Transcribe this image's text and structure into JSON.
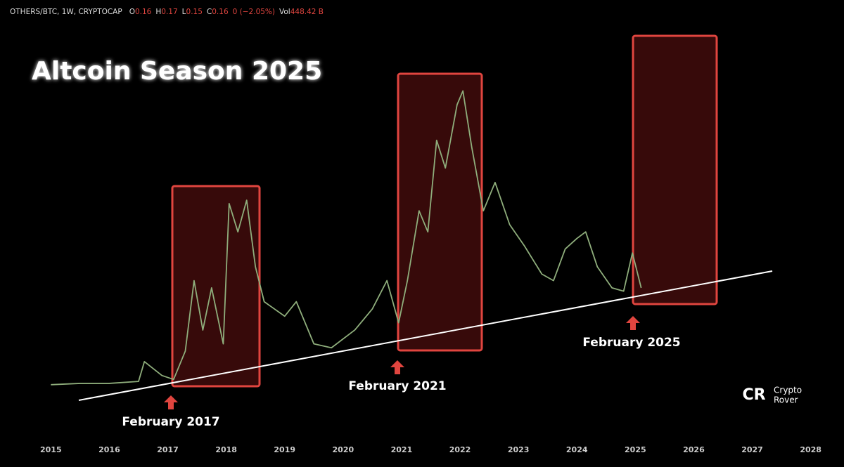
{
  "header": {
    "symbol": "OTHERS/BTC, 1W, CRYPTOCAP",
    "fields": [
      {
        "key": "O",
        "value": "0.16"
      },
      {
        "key": "H",
        "value": "0.17"
      },
      {
        "key": "L",
        "value": "0.15"
      },
      {
        "key": "C",
        "value": "0.16"
      },
      {
        "key": "",
        "value": "0 (−2.05%)"
      },
      {
        "key": "Vol",
        "value": "448.42 B"
      }
    ]
  },
  "logo": {
    "mark": "CR",
    "line1": "Crypto",
    "line2": "Rover"
  },
  "chart_data": {
    "type": "line",
    "title": "Altcoin Season 2025",
    "annotations": [
      "February 2017",
      "February 2021",
      "February 2025"
    ],
    "x": [
      2015.0,
      2015.5,
      2016.0,
      2016.5,
      2016.6,
      2016.9,
      2017.1,
      2017.3,
      2017.45,
      2017.6,
      2017.75,
      2017.95,
      2018.05,
      2018.2,
      2018.35,
      2018.5,
      2018.65,
      2019.0,
      2019.2,
      2019.5,
      2019.8,
      2020.2,
      2020.5,
      2020.75,
      2020.95,
      2021.1,
      2021.3,
      2021.45,
      2021.6,
      2021.75,
      2021.95,
      2022.05,
      2022.2,
      2022.4,
      2022.6,
      2022.85,
      2023.1,
      2023.4,
      2023.6,
      2023.8,
      2024.0,
      2024.15,
      2024.35,
      2024.6,
      2024.8,
      2024.95,
      2025.1
    ],
    "series": [
      {
        "name": "OTHERS/BTC",
        "color": "#8fae7c",
        "values": [
          0.013,
          0.015,
          0.015,
          0.018,
          0.048,
          0.027,
          0.021,
          0.064,
          0.171,
          0.096,
          0.16,
          0.075,
          0.288,
          0.245,
          0.293,
          0.192,
          0.139,
          0.117,
          0.139,
          0.075,
          0.069,
          0.096,
          0.128,
          0.171,
          0.107,
          0.171,
          0.277,
          0.245,
          0.384,
          0.342,
          0.438,
          0.459,
          0.374,
          0.277,
          0.32,
          0.256,
          0.224,
          0.181,
          0.171,
          0.219,
          0.235,
          0.245,
          0.192,
          0.16,
          0.155,
          0.213,
          0.16
        ]
      }
    ],
    "xlim": [
      2014.25,
      2028.57
    ],
    "xticks": [
      2015,
      2016,
      2017,
      2018,
      2019,
      2020,
      2021,
      2022,
      2023,
      2024,
      2025,
      2026,
      2027,
      2028
    ],
    "ylim": [
      0,
      0.5
    ]
  }
}
